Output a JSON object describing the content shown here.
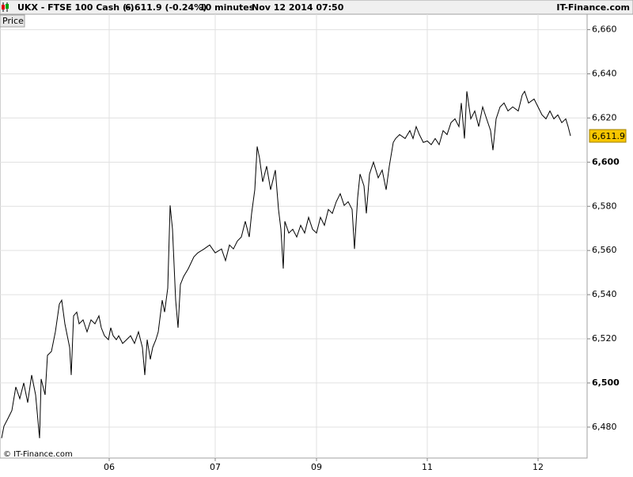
{
  "header": {
    "symbol": "UKX - FTSE 100 Cash (-)",
    "quote": "6,611.9 (-0.24%)",
    "interval": "10 minutes",
    "timestamp": "Nov 12 2014 07:50",
    "site": "IT-Finance.com"
  },
  "chart_data": {
    "type": "line",
    "panel_label": "Price",
    "watermark": "© IT-Finance.com",
    "color": "#000000",
    "grid": true,
    "xlim": [
      0,
      742
    ],
    "ylim": [
      6466,
      6667
    ],
    "xticks": [
      {
        "value": 138,
        "label": "06"
      },
      {
        "value": 272,
        "label": "07"
      },
      {
        "value": 400,
        "label": "09"
      },
      {
        "value": 540,
        "label": "11"
      },
      {
        "value": 680,
        "label": "12"
      }
    ],
    "yticks": [
      {
        "value": 6480,
        "label": "6,480"
      },
      {
        "value": 6500,
        "label": "6,500"
      },
      {
        "value": 6520,
        "label": "6,520"
      },
      {
        "value": 6540,
        "label": "6,540"
      },
      {
        "value": 6560,
        "label": "6,560"
      },
      {
        "value": 6580,
        "label": "6,580"
      },
      {
        "value": 6600,
        "label": "6,600"
      },
      {
        "value": 6620,
        "label": "6,620"
      },
      {
        "value": 6640,
        "label": "6,640"
      },
      {
        "value": 6660,
        "label": "6,660"
      }
    ],
    "x": [
      2,
      5,
      10,
      15,
      20,
      25,
      30,
      35,
      40,
      45,
      50,
      52,
      57,
      60,
      65,
      70,
      75,
      78,
      82,
      88,
      90,
      93,
      97,
      100,
      105,
      110,
      115,
      120,
      125,
      128,
      132,
      137,
      140,
      143,
      147,
      150,
      155,
      160,
      165,
      170,
      175,
      180,
      183,
      186,
      190,
      193,
      197,
      200,
      205,
      208,
      212,
      215,
      218,
      222,
      225,
      228,
      232,
      238,
      245,
      250,
      258,
      265,
      272,
      280,
      285,
      290,
      295,
      300,
      305,
      310,
      315,
      318,
      322,
      325,
      328,
      332,
      337,
      342,
      348,
      352,
      355,
      358,
      360,
      365,
      370,
      375,
      380,
      385,
      390,
      395,
      400,
      405,
      410,
      415,
      420,
      425,
      430,
      435,
      440,
      445,
      448,
      452,
      455,
      460,
      463,
      467,
      472,
      478,
      483,
      488,
      492,
      497,
      500,
      505,
      512,
      518,
      522,
      526,
      530,
      535,
      540,
      545,
      550,
      555,
      560,
      565,
      570,
      575,
      580,
      583,
      587,
      590,
      595,
      600,
      605,
      610,
      615,
      620,
      623,
      627,
      632,
      637,
      642,
      648,
      655,
      660,
      663,
      668,
      675,
      680,
      685,
      690,
      695,
      700,
      705,
      710,
      715,
      718,
      721
    ],
    "values": [
      6475,
      6480.4,
      6483.9,
      6487.5,
      6498.2,
      6492.9,
      6500,
      6491.1,
      6503.6,
      6494.6,
      6475,
      6501.8,
      6494.6,
      6512.5,
      6514.3,
      6523.2,
      6535.7,
      6537.5,
      6526.8,
      6516.1,
      6503.6,
      6530.4,
      6532.1,
      6526.8,
      6528.6,
      6523.2,
      6528.6,
      6526.8,
      6530.4,
      6525,
      6521.4,
      6519.6,
      6525,
      6521.4,
      6519.6,
      6521.4,
      6517.9,
      6519.6,
      6521.4,
      6517.9,
      6523.2,
      6516.1,
      6503.6,
      6519.6,
      6510.7,
      6516.1,
      6519.6,
      6523.2,
      6537.5,
      6532.1,
      6542.9,
      6580.4,
      6569.6,
      6537.5,
      6525,
      6544.6,
      6548.2,
      6551.8,
      6557.1,
      6558.9,
      6560.7,
      6562.5,
      6558.9,
      6560.7,
      6555.4,
      6562.5,
      6560.7,
      6564.3,
      6566.1,
      6573.2,
      6566.1,
      6576.8,
      6587.5,
      6607.1,
      6601.8,
      6591.1,
      6598.2,
      6587.5,
      6596.4,
      6578.6,
      6569.6,
      6551.8,
      6573.2,
      6567.9,
      6569.6,
      6566.1,
      6571.4,
      6567.9,
      6575,
      6569.6,
      6567.9,
      6575,
      6571.4,
      6578.6,
      6576.8,
      6582.1,
      6585.7,
      6580.4,
      6582.1,
      6578.6,
      6560.7,
      6583.9,
      6594.6,
      6589.3,
      6576.8,
      6594.6,
      6600,
      6592.9,
      6596.4,
      6587.5,
      6598.2,
      6608.9,
      6610.7,
      6612.5,
      6610.7,
      6614.3,
      6610.7,
      6616.1,
      6612.5,
      6608.9,
      6609.6,
      6607.9,
      6610.7,
      6607.9,
      6614.3,
      6612.5,
      6617.9,
      6619.6,
      6616.1,
      6626.8,
      6610.7,
      6632.1,
      6619.6,
      6623.2,
      6616.1,
      6625,
      6619.6,
      6614.3,
      6605.4,
      6619.6,
      6625,
      6626.8,
      6623.2,
      6625,
      6623.2,
      6630.4,
      6632.1,
      6626.8,
      6628.6,
      6625,
      6621.4,
      6619.6,
      6623.2,
      6619.6,
      6621.4,
      6617.9,
      6619.6,
      6616.1,
      6611.9
    ],
    "last_label": "6,611.9"
  }
}
